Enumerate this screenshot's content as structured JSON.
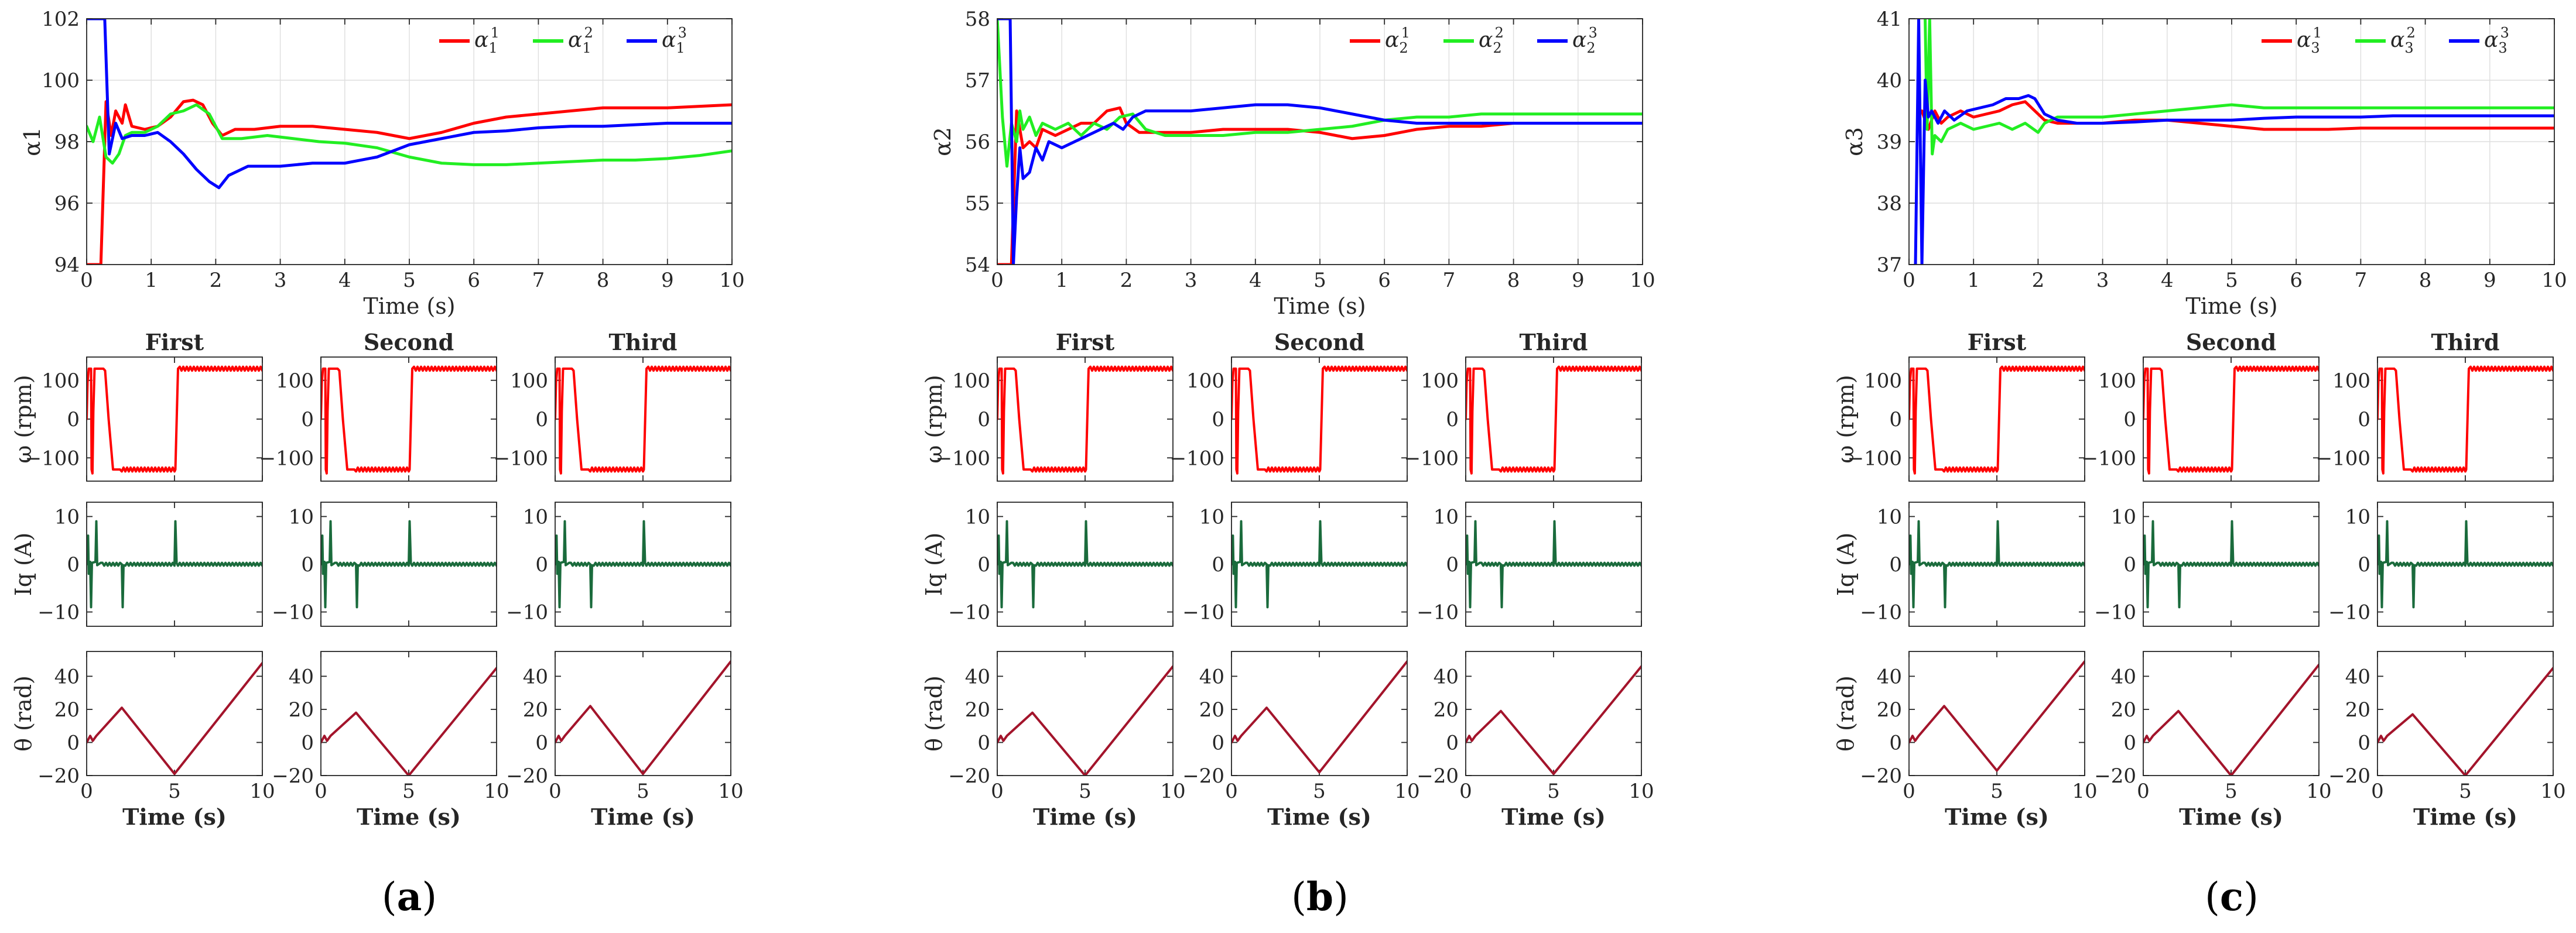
{
  "figure": {
    "colors": {
      "alpha1": "#ff0000",
      "alpha2": "#22ee22",
      "alpha3": "#0000ff",
      "omega": "#ff0000",
      "iq": "#1a6b3c",
      "theta": "#a3142b"
    },
    "time_axis": {
      "xlabel": "Time (s)",
      "xlim": [
        0,
        10
      ],
      "big_ticks": [
        "0",
        "1",
        "2",
        "3",
        "4",
        "5",
        "6",
        "7",
        "8",
        "9",
        "10"
      ],
      "small_ticks": [
        "0",
        "5",
        "10"
      ]
    },
    "small_rows": {
      "column_titles": [
        "First",
        "Second",
        "Third"
      ],
      "omega": {
        "ylabel": "ω (rpm)",
        "ylim": [
          -160,
          160
        ],
        "ticks": [
          "100",
          "0",
          "−100"
        ],
        "tick_values": [
          100,
          0,
          -100
        ]
      },
      "iq": {
        "ylabel": "Iq (A)",
        "ylim": [
          -13,
          13
        ],
        "ticks": [
          "10",
          "0",
          "−10"
        ],
        "tick_values": [
          10,
          0,
          -10
        ]
      },
      "theta": {
        "ylabel": "θ (rad)",
        "ylim": [
          -20,
          55
        ],
        "ticks": [
          "40",
          "20",
          "0",
          "−20"
        ],
        "tick_values": [
          40,
          20,
          0,
          -20
        ]
      }
    }
  },
  "chart_data": [
    {
      "panel": "a",
      "panel_label": "(a)",
      "panel_letter": "a",
      "type": "line",
      "title": "",
      "xlabel": "Time (s)",
      "ylabel": "α1",
      "xlim": [
        0,
        10
      ],
      "ylim": [
        94,
        102
      ],
      "yticks": [
        "102",
        "100",
        "98",
        "96",
        "94"
      ],
      "ytick_values": [
        102,
        100,
        98,
        96,
        94
      ],
      "legend": {
        "position": "top-right",
        "base": "α",
        "subscript": "1"
      },
      "series": [
        {
          "name": "α_1^1",
          "sup": "1",
          "color_key": "alpha1",
          "x": [
            0,
            0.22,
            0.3,
            0.38,
            0.45,
            0.55,
            0.6,
            0.7,
            0.9,
            1.1,
            1.3,
            1.5,
            1.65,
            1.8,
            1.95,
            2.1,
            2.3,
            2.6,
            3.0,
            3.5,
            4.0,
            4.5,
            5.0,
            5.5,
            6.0,
            6.5,
            7.0,
            7.5,
            8.0,
            8.5,
            9.0,
            9.5,
            10
          ],
          "y": [
            94,
            94,
            99.3,
            98.2,
            99.0,
            98.6,
            99.2,
            98.5,
            98.4,
            98.5,
            98.8,
            99.3,
            99.35,
            99.2,
            98.6,
            98.2,
            98.4,
            98.4,
            98.5,
            98.5,
            98.4,
            98.3,
            98.1,
            98.3,
            98.6,
            98.8,
            98.9,
            99.0,
            99.1,
            99.1,
            99.1,
            99.15,
            99.2
          ]
        },
        {
          "name": "α_1^2",
          "sup": "2",
          "color_key": "alpha2",
          "x": [
            0,
            0.1,
            0.2,
            0.3,
            0.4,
            0.5,
            0.6,
            0.7,
            0.9,
            1.1,
            1.3,
            1.5,
            1.7,
            1.9,
            2.1,
            2.4,
            2.8,
            3.2,
            3.6,
            4.0,
            4.5,
            5.0,
            5.5,
            6.0,
            6.5,
            7.0,
            7.5,
            8.0,
            8.5,
            9.0,
            9.5,
            10
          ],
          "y": [
            98.5,
            98.0,
            98.8,
            97.5,
            97.3,
            97.6,
            98.2,
            98.3,
            98.3,
            98.5,
            98.9,
            99.0,
            99.2,
            98.9,
            98.1,
            98.1,
            98.2,
            98.1,
            98.0,
            97.95,
            97.8,
            97.5,
            97.3,
            97.25,
            97.25,
            97.3,
            97.35,
            97.4,
            97.4,
            97.45,
            97.55,
            97.7
          ]
        },
        {
          "name": "α_1^3",
          "sup": "3",
          "color_key": "alpha3",
          "x": [
            0,
            0.28,
            0.35,
            0.45,
            0.55,
            0.7,
            0.9,
            1.1,
            1.3,
            1.5,
            1.7,
            1.9,
            2.05,
            2.2,
            2.5,
            3.0,
            3.5,
            4.0,
            4.5,
            5.0,
            5.5,
            6.0,
            6.5,
            7.0,
            7.5,
            8.0,
            8.5,
            9.0,
            9.5,
            10
          ],
          "y": [
            102,
            102,
            97.6,
            98.6,
            98.1,
            98.2,
            98.2,
            98.3,
            98.0,
            97.6,
            97.1,
            96.7,
            96.5,
            96.9,
            97.2,
            97.2,
            97.3,
            97.3,
            97.5,
            97.9,
            98.1,
            98.3,
            98.35,
            98.45,
            98.5,
            98.5,
            98.55,
            98.6,
            98.6,
            98.6
          ]
        }
      ],
      "small_columns": [
        {
          "title": "First",
          "theta_peak": 21,
          "theta_valley": -19,
          "theta_end": 48
        },
        {
          "title": "Second",
          "theta_peak": 18,
          "theta_valley": -20,
          "theta_end": 45
        },
        {
          "title": "Third",
          "theta_peak": 22,
          "theta_valley": -19,
          "theta_end": 49
        }
      ]
    },
    {
      "panel": "b",
      "panel_label": "(b)",
      "panel_letter": "b",
      "type": "line",
      "title": "",
      "xlabel": "Time (s)",
      "ylabel": "α2",
      "xlim": [
        0,
        10
      ],
      "ylim": [
        54,
        58
      ],
      "yticks": [
        "58",
        "57",
        "56",
        "55",
        "54"
      ],
      "ytick_values": [
        58,
        57,
        56,
        55,
        54
      ],
      "legend": {
        "position": "top-right",
        "base": "α",
        "subscript": "2"
      },
      "series": [
        {
          "name": "α_2^1",
          "sup": "1",
          "color_key": "alpha1",
          "x": [
            0,
            0.22,
            0.3,
            0.4,
            0.5,
            0.6,
            0.7,
            0.9,
            1.1,
            1.3,
            1.5,
            1.7,
            1.9,
            2.0,
            2.2,
            2.5,
            3.0,
            3.5,
            4.0,
            4.5,
            5.0,
            5.5,
            6.0,
            6.5,
            7.0,
            7.5,
            8.0,
            8.5,
            9.0,
            9.5,
            10
          ],
          "y": [
            54,
            54,
            56.5,
            55.9,
            56.0,
            55.9,
            56.2,
            56.1,
            56.2,
            56.3,
            56.3,
            56.5,
            56.55,
            56.3,
            56.15,
            56.15,
            56.15,
            56.2,
            56.2,
            56.2,
            56.15,
            56.05,
            56.1,
            56.2,
            56.25,
            56.25,
            56.3,
            56.3,
            56.3,
            56.3,
            56.3
          ]
        },
        {
          "name": "α_2^2",
          "sup": "2",
          "color_key": "alpha2",
          "x": [
            0,
            0.08,
            0.15,
            0.22,
            0.3,
            0.35,
            0.4,
            0.5,
            0.6,
            0.7,
            0.9,
            1.1,
            1.3,
            1.5,
            1.7,
            1.9,
            2.1,
            2.3,
            2.6,
            3.0,
            3.5,
            4.0,
            4.5,
            5.0,
            5.5,
            6.0,
            6.5,
            7.0,
            7.5,
            8.0,
            8.5,
            9.0,
            9.5,
            10
          ],
          "y": [
            58,
            56.4,
            55.6,
            56.3,
            56.0,
            56.5,
            56.2,
            56.4,
            56.1,
            56.3,
            56.2,
            56.3,
            56.1,
            56.3,
            56.2,
            56.4,
            56.45,
            56.2,
            56.1,
            56.1,
            56.1,
            56.15,
            56.15,
            56.2,
            56.25,
            56.35,
            56.4,
            56.4,
            56.45,
            56.45,
            56.45,
            56.45,
            56.45,
            56.45
          ]
        },
        {
          "name": "α_2^3",
          "sup": "3",
          "color_key": "alpha3",
          "x": [
            0,
            0.2,
            0.25,
            0.3,
            0.35,
            0.4,
            0.5,
            0.6,
            0.7,
            0.8,
            1.0,
            1.2,
            1.4,
            1.6,
            1.8,
            1.95,
            2.1,
            2.3,
            2.6,
            3.0,
            3.5,
            4.0,
            4.5,
            5.0,
            5.5,
            6.0,
            6.5,
            7.0,
            7.5,
            8.0,
            8.5,
            9.0,
            9.5,
            10
          ],
          "y": [
            58,
            58,
            54,
            55.1,
            55.9,
            55.4,
            55.5,
            55.9,
            55.7,
            56.0,
            55.9,
            56.0,
            56.1,
            56.2,
            56.3,
            56.2,
            56.4,
            56.5,
            56.5,
            56.5,
            56.55,
            56.6,
            56.6,
            56.55,
            56.45,
            56.35,
            56.3,
            56.3,
            56.3,
            56.3,
            56.3,
            56.3,
            56.3,
            56.3
          ]
        }
      ],
      "small_columns": [
        {
          "title": "First",
          "theta_peak": 18,
          "theta_valley": -20,
          "theta_end": 46
        },
        {
          "title": "Second",
          "theta_peak": 21,
          "theta_valley": -18,
          "theta_end": 49
        },
        {
          "title": "Third",
          "theta_peak": 19,
          "theta_valley": -19,
          "theta_end": 46
        }
      ]
    },
    {
      "panel": "c",
      "panel_label": "(c)",
      "panel_letter": "c",
      "type": "line",
      "title": "",
      "xlabel": "Time (s)",
      "ylabel": "α3",
      "xlim": [
        0,
        10
      ],
      "ylim": [
        37,
        41
      ],
      "yticks": [
        "41",
        "40",
        "39",
        "38",
        "37"
      ],
      "ytick_values": [
        41,
        40,
        39,
        38,
        37
      ],
      "legend": {
        "position": "top-right",
        "base": "α",
        "subscript": "3"
      },
      "series": [
        {
          "name": "α_3^1",
          "sup": "1",
          "color_key": "alpha1",
          "x": [
            0.2,
            0.3,
            0.4,
            0.5,
            0.6,
            0.8,
            1.0,
            1.2,
            1.4,
            1.6,
            1.8,
            1.95,
            2.1,
            2.3,
            2.6,
            3.0,
            3.5,
            4.0,
            4.5,
            5.0,
            5.5,
            6.0,
            6.5,
            7.0,
            7.5,
            8.0,
            8.5,
            9.0,
            9.5,
            10
          ],
          "y": [
            39.5,
            39.2,
            39.5,
            39.3,
            39.4,
            39.5,
            39.4,
            39.45,
            39.5,
            39.6,
            39.65,
            39.5,
            39.35,
            39.3,
            39.3,
            39.3,
            39.35,
            39.35,
            39.3,
            39.25,
            39.2,
            39.2,
            39.2,
            39.22,
            39.22,
            39.22,
            39.22,
            39.22,
            39.22,
            39.22
          ]
        },
        {
          "name": "α_3^2",
          "sup": "2",
          "color_key": "alpha2",
          "x": [
            0.25,
            0.28,
            0.32,
            0.36,
            0.4,
            0.5,
            0.6,
            0.8,
            1.0,
            1.2,
            1.4,
            1.6,
            1.8,
            2.0,
            2.1,
            2.3,
            2.6,
            3.0,
            3.5,
            4.0,
            4.5,
            5.0,
            5.5,
            6.0,
            6.5,
            7.0,
            7.5,
            8.0,
            8.5,
            9.0,
            9.5,
            10
          ],
          "y": [
            41,
            39.2,
            41,
            38.8,
            39.1,
            39.0,
            39.2,
            39.3,
            39.2,
            39.25,
            39.3,
            39.2,
            39.3,
            39.15,
            39.3,
            39.4,
            39.4,
            39.4,
            39.45,
            39.5,
            39.55,
            39.6,
            39.55,
            39.55,
            39.55,
            39.55,
            39.55,
            39.55,
            39.55,
            39.55,
            39.55,
            39.55
          ]
        },
        {
          "name": "α_3^3",
          "sup": "3",
          "color_key": "alpha3",
          "x": [
            0.1,
            0.15,
            0.2,
            0.25,
            0.3,
            0.35,
            0.45,
            0.55,
            0.7,
            0.9,
            1.1,
            1.3,
            1.5,
            1.7,
            1.85,
            1.95,
            2.1,
            2.3,
            2.6,
            3.0,
            3.5,
            4.0,
            4.5,
            5.0,
            5.5,
            6.0,
            6.5,
            7.0,
            7.5,
            8.0,
            8.5,
            9.0,
            9.5,
            10
          ],
          "y": [
            37,
            41,
            37,
            40,
            39.4,
            39.5,
            39.3,
            39.5,
            39.35,
            39.5,
            39.55,
            39.6,
            39.7,
            39.7,
            39.75,
            39.7,
            39.45,
            39.35,
            39.3,
            39.3,
            39.32,
            39.35,
            39.35,
            39.35,
            39.38,
            39.4,
            39.4,
            39.4,
            39.42,
            39.42,
            39.42,
            39.42,
            39.42,
            39.42
          ]
        }
      ],
      "small_columns": [
        {
          "title": "First",
          "theta_peak": 22,
          "theta_valley": -17,
          "theta_end": 49
        },
        {
          "title": "Second",
          "theta_peak": 19,
          "theta_valley": -20,
          "theta_end": 47
        },
        {
          "title": "Third",
          "theta_peak": 17,
          "theta_valley": -20,
          "theta_end": 45
        }
      ]
    }
  ]
}
